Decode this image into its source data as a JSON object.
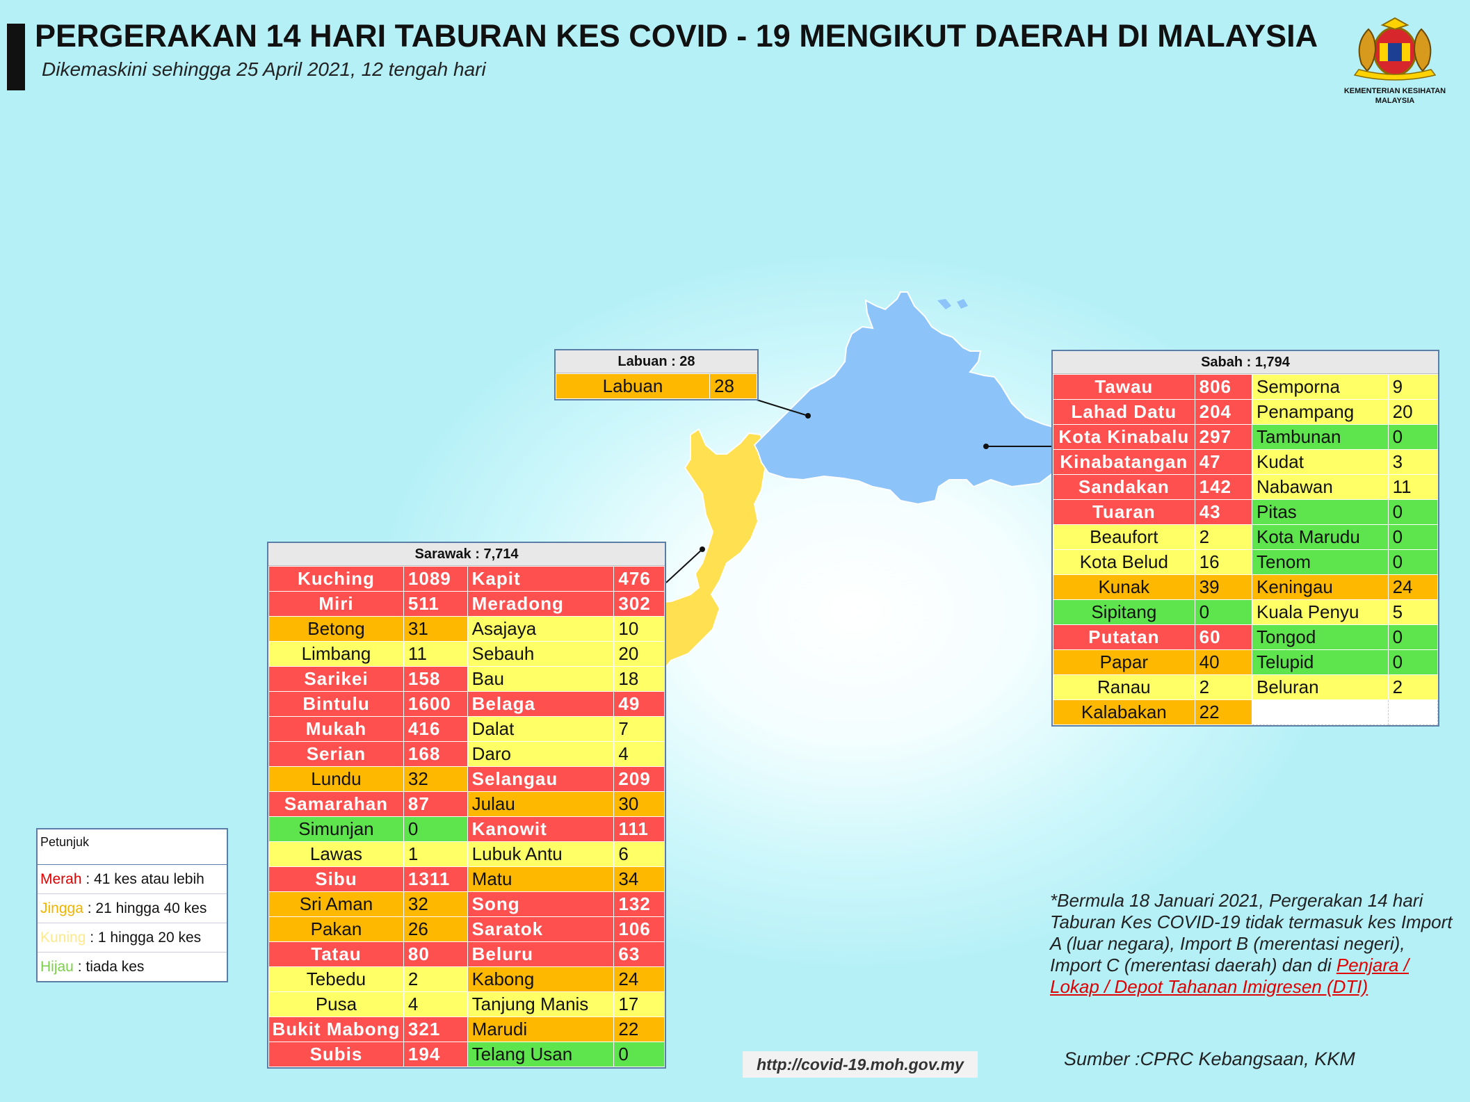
{
  "header": {
    "title": "PERGERAKAN 14 HARI TABURAN KES COVID - 19 MENGIKUT DAERAH DI MALAYSIA",
    "subtitle": "Dikemaskini sehingga 25 April 2021, 12 tengah hari",
    "logo_text": "KEMENTERIAN KESIHATAN MALAYSIA"
  },
  "colors": {
    "merah": "#ff5050",
    "jingga": "#ffb800",
    "kuning": "#ffff66",
    "hijau": "#5ee44c",
    "sabah_fill": "#8cc4fa",
    "sarawak_fill": "#ffe050"
  },
  "labuan": {
    "header": "Labuan : 28",
    "rows": [
      {
        "name": "Labuan",
        "value": "28",
        "cls": "jingga"
      }
    ]
  },
  "sabah": {
    "header": "Sabah : 1,794",
    "rows": [
      [
        {
          "name": "Tawau",
          "value": "806",
          "cls": "merah"
        },
        {
          "name": "Semporna",
          "value": "9",
          "cls": "kuning"
        }
      ],
      [
        {
          "name": "Lahad Datu",
          "value": "204",
          "cls": "merah"
        },
        {
          "name": "Penampang",
          "value": "20",
          "cls": "kuning"
        }
      ],
      [
        {
          "name": "Kota Kinabalu",
          "value": "297",
          "cls": "merah"
        },
        {
          "name": "Tambunan",
          "value": "0",
          "cls": "hijau"
        }
      ],
      [
        {
          "name": "Kinabatangan",
          "value": "47",
          "cls": "merah"
        },
        {
          "name": "Kudat",
          "value": "3",
          "cls": "kuning"
        }
      ],
      [
        {
          "name": "Sandakan",
          "value": "142",
          "cls": "merah"
        },
        {
          "name": "Nabawan",
          "value": "11",
          "cls": "kuning"
        }
      ],
      [
        {
          "name": "Tuaran",
          "value": "43",
          "cls": "merah"
        },
        {
          "name": "Pitas",
          "value": "0",
          "cls": "hijau"
        }
      ],
      [
        {
          "name": "Beaufort",
          "value": "2",
          "cls": "kuning"
        },
        {
          "name": "Kota Marudu",
          "value": "0",
          "cls": "hijau"
        }
      ],
      [
        {
          "name": "Kota Belud",
          "value": "16",
          "cls": "kuning"
        },
        {
          "name": "Tenom",
          "value": "0",
          "cls": "hijau"
        }
      ],
      [
        {
          "name": "Kunak",
          "value": "39",
          "cls": "jingga"
        },
        {
          "name": "Keningau",
          "value": "24",
          "cls": "jingga"
        }
      ],
      [
        {
          "name": "Sipitang",
          "value": "0",
          "cls": "hijau"
        },
        {
          "name": "Kuala Penyu",
          "value": "5",
          "cls": "kuning"
        }
      ],
      [
        {
          "name": "Putatan",
          "value": "60",
          "cls": "merah"
        },
        {
          "name": "Tongod",
          "value": "0",
          "cls": "hijau"
        }
      ],
      [
        {
          "name": "Papar",
          "value": "40",
          "cls": "jingga"
        },
        {
          "name": "Telupid",
          "value": "0",
          "cls": "hijau"
        }
      ],
      [
        {
          "name": "Ranau",
          "value": "2",
          "cls": "kuning"
        },
        {
          "name": "Beluran",
          "value": "2",
          "cls": "kuning"
        }
      ],
      [
        {
          "name": "Kalabakan",
          "value": "22",
          "cls": "jingga"
        },
        {
          "name": "",
          "value": "",
          "cls": "kosong"
        }
      ]
    ]
  },
  "sarawak": {
    "header": "Sarawak : 7,714",
    "rows": [
      [
        {
          "name": "Kuching",
          "value": "1089",
          "cls": "merah"
        },
        {
          "name": "Kapit",
          "value": "476",
          "cls": "merah"
        }
      ],
      [
        {
          "name": "Miri",
          "value": "511",
          "cls": "merah"
        },
        {
          "name": "Meradong",
          "value": "302",
          "cls": "merah"
        }
      ],
      [
        {
          "name": "Betong",
          "value": "31",
          "cls": "jingga"
        },
        {
          "name": "Asajaya",
          "value": "10",
          "cls": "kuning"
        }
      ],
      [
        {
          "name": "Limbang",
          "value": "11",
          "cls": "kuning"
        },
        {
          "name": "Sebauh",
          "value": "20",
          "cls": "kuning"
        }
      ],
      [
        {
          "name": "Sarikei",
          "value": "158",
          "cls": "merah"
        },
        {
          "name": "Bau",
          "value": "18",
          "cls": "kuning"
        }
      ],
      [
        {
          "name": "Bintulu",
          "value": "1600",
          "cls": "merah"
        },
        {
          "name": "Belaga",
          "value": "49",
          "cls": "merah"
        }
      ],
      [
        {
          "name": "Mukah",
          "value": "416",
          "cls": "merah"
        },
        {
          "name": "Dalat",
          "value": "7",
          "cls": "kuning"
        }
      ],
      [
        {
          "name": "Serian",
          "value": "168",
          "cls": "merah"
        },
        {
          "name": "Daro",
          "value": "4",
          "cls": "kuning"
        }
      ],
      [
        {
          "name": "Lundu",
          "value": "32",
          "cls": "jingga"
        },
        {
          "name": "Selangau",
          "value": "209",
          "cls": "merah"
        }
      ],
      [
        {
          "name": "Samarahan",
          "value": "87",
          "cls": "merah"
        },
        {
          "name": "Julau",
          "value": "30",
          "cls": "jingga"
        }
      ],
      [
        {
          "name": "Simunjan",
          "value": "0",
          "cls": "hijau"
        },
        {
          "name": "Kanowit",
          "value": "111",
          "cls": "merah"
        }
      ],
      [
        {
          "name": "Lawas",
          "value": "1",
          "cls": "kuning"
        },
        {
          "name": "Lubuk Antu",
          "value": "6",
          "cls": "kuning"
        }
      ],
      [
        {
          "name": "Sibu",
          "value": "1311",
          "cls": "merah"
        },
        {
          "name": "Matu",
          "value": "34",
          "cls": "jingga"
        }
      ],
      [
        {
          "name": "Sri Aman",
          "value": "32",
          "cls": "jingga"
        },
        {
          "name": "Song",
          "value": "132",
          "cls": "merah"
        }
      ],
      [
        {
          "name": "Pakan",
          "value": "26",
          "cls": "jingga"
        },
        {
          "name": "Saratok",
          "value": "106",
          "cls": "merah"
        }
      ],
      [
        {
          "name": "Tatau",
          "value": "80",
          "cls": "merah"
        },
        {
          "name": "Beluru",
          "value": "63",
          "cls": "merah"
        }
      ],
      [
        {
          "name": "Tebedu",
          "value": "2",
          "cls": "kuning"
        },
        {
          "name": "Kabong",
          "value": "24",
          "cls": "jingga"
        }
      ],
      [
        {
          "name": "Pusa",
          "value": "4",
          "cls": "kuning"
        },
        {
          "name": "Tanjung Manis",
          "value": "17",
          "cls": "kuning"
        }
      ],
      [
        {
          "name": "Bukit Mabong",
          "value": "321",
          "cls": "merah"
        },
        {
          "name": "Marudi",
          "value": "22",
          "cls": "jingga"
        }
      ],
      [
        {
          "name": "Subis",
          "value": "194",
          "cls": "merah"
        },
        {
          "name": "Telang Usan",
          "value": "0",
          "cls": "hijau"
        }
      ]
    ]
  },
  "legend": {
    "title": "Petunjuk",
    "items": [
      {
        "key": "Merah",
        "text": " : 41 kes atau lebih",
        "color": "#e00000"
      },
      {
        "key": "Jingga",
        "text": " : 21 hingga 40 kes",
        "color": "#f0b400"
      },
      {
        "key": "Kuning",
        "text": " : 1 hingga 20 kes",
        "color": "#ffe98a"
      },
      {
        "key": "Hijau",
        "text": " : tiada kes",
        "color": "#7ccf4a"
      }
    ]
  },
  "note": {
    "text": "*Bermula 18 Januari 2021, Pergerakan 14 hari Taburan Kes COVID-19 tidak termasuk kes Import A (luar negara), Import B (merentasi negeri), Import C (merentasi daerah) dan di ",
    "link": "Penjara / Lokap / Depot Tahanan Imigresen (DTI)"
  },
  "source": "Sumber :CPRC Kebangsaan,  KKM",
  "url": "http://covid-19.moh.gov.my"
}
